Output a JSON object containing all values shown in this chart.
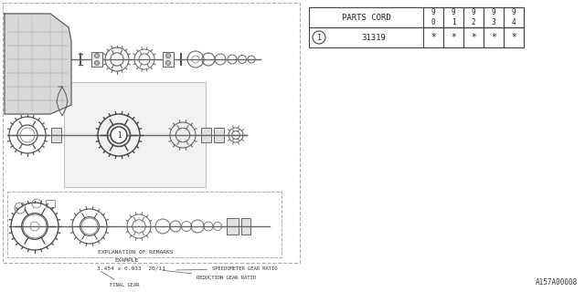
{
  "bg_color": "#ffffff",
  "table": {
    "header": [
      "PARTS CORD",
      "9\n0",
      "9\n1",
      "9\n2",
      "9\n3",
      "9\n4"
    ],
    "row_label": "1",
    "row_part": "31319",
    "row_values": [
      "*",
      "*",
      "*",
      "*",
      "*"
    ]
  },
  "footer_id": "A157A00008",
  "explanation_title": "EXPLANATION OF REMARKS",
  "explanation_example": "EXAMPLE",
  "formula": "3.454 x 0.933  20/11",
  "label_speedometer": "SPEEDOMETER GEAR RATIO",
  "label_reduction": "REDUCTION GEAR RATIO",
  "label_final": "FINAL GEAR"
}
